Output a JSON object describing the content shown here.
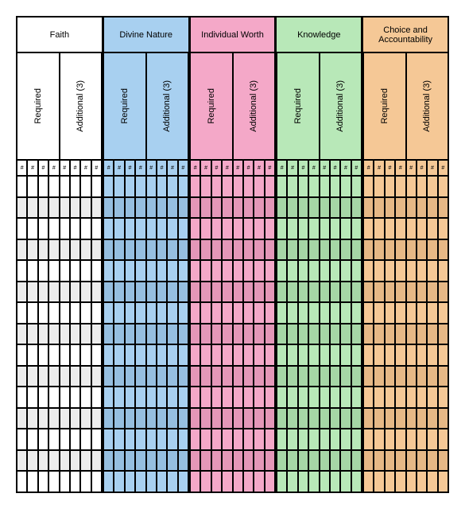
{
  "chart": {
    "type": "table",
    "categories": [
      {
        "name": "Faith",
        "bg": "#ffffff",
        "bg_alt": "#ececec"
      },
      {
        "name": "Divine Nature",
        "bg": "#a8d0f0",
        "bg_alt": "#96bfe0"
      },
      {
        "name": "Individual Worth",
        "bg": "#f4a8c8",
        "bg_alt": "#e497b8"
      },
      {
        "name": "Knowledge",
        "bg": "#b8e8b8",
        "bg_alt": "#a6d6a6"
      },
      {
        "name": "Choice and Accountability",
        "bg": "#f5c896",
        "bg_alt": "#e6b886"
      }
    ],
    "subcolumns": [
      {
        "label": "Required"
      },
      {
        "label": "Additional (3)"
      }
    ],
    "hash_label": "#",
    "hashes_per_sub": 4,
    "grid_rows": 15,
    "border_color": "#000000",
    "font_family": "Arial",
    "header_fontsize": 11,
    "sub_fontsize": 11
  }
}
